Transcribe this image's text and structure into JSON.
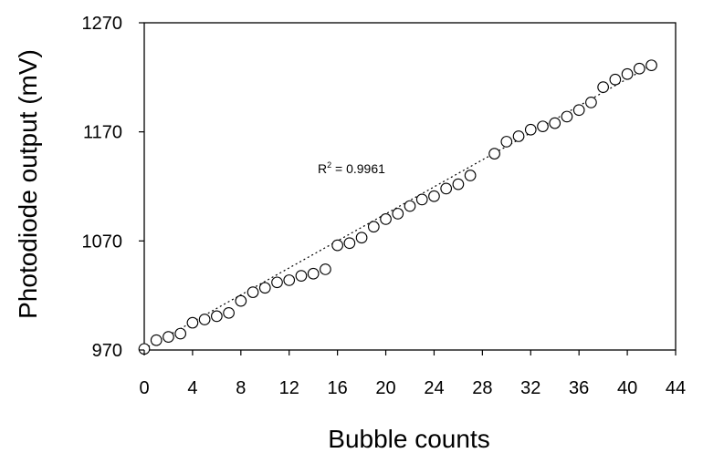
{
  "chart_data": {
    "type": "scatter",
    "xlabel": "Bubble counts",
    "ylabel": "Photodiode output (mV)",
    "xlim": [
      0,
      44
    ],
    "ylim": [
      970,
      1270
    ],
    "xticks": [
      0,
      4,
      8,
      12,
      16,
      20,
      24,
      28,
      32,
      36,
      40,
      44
    ],
    "yticks": [
      970,
      1070,
      1170,
      1270
    ],
    "grid": false,
    "marker": "open-circle",
    "trendline": {
      "style": "dotted",
      "x": [
        0,
        42
      ],
      "y": [
        971,
        1231
      ]
    },
    "annotation": {
      "base": "R",
      "sup": "2",
      "value_text": " = 0.9961"
    },
    "x": [
      0,
      1,
      2,
      3,
      4,
      5,
      6,
      7,
      8,
      9,
      10,
      11,
      12,
      13,
      14,
      15,
      16,
      17,
      18,
      19,
      20,
      21,
      22,
      23,
      24,
      25,
      26,
      27,
      29,
      30,
      31,
      32,
      33,
      34,
      35,
      36,
      37,
      38,
      39,
      40,
      41,
      42
    ],
    "y": [
      971,
      979,
      982,
      985,
      995,
      998,
      1001,
      1004,
      1015,
      1023,
      1027,
      1032,
      1034,
      1038,
      1040,
      1044,
      1066,
      1068,
      1073,
      1083,
      1090,
      1095,
      1102,
      1108,
      1111,
      1118,
      1122,
      1130,
      1150,
      1161,
      1166,
      1172,
      1175,
      1178,
      1184,
      1190,
      1197,
      1211,
      1218,
      1223,
      1228,
      1231
    ]
  }
}
